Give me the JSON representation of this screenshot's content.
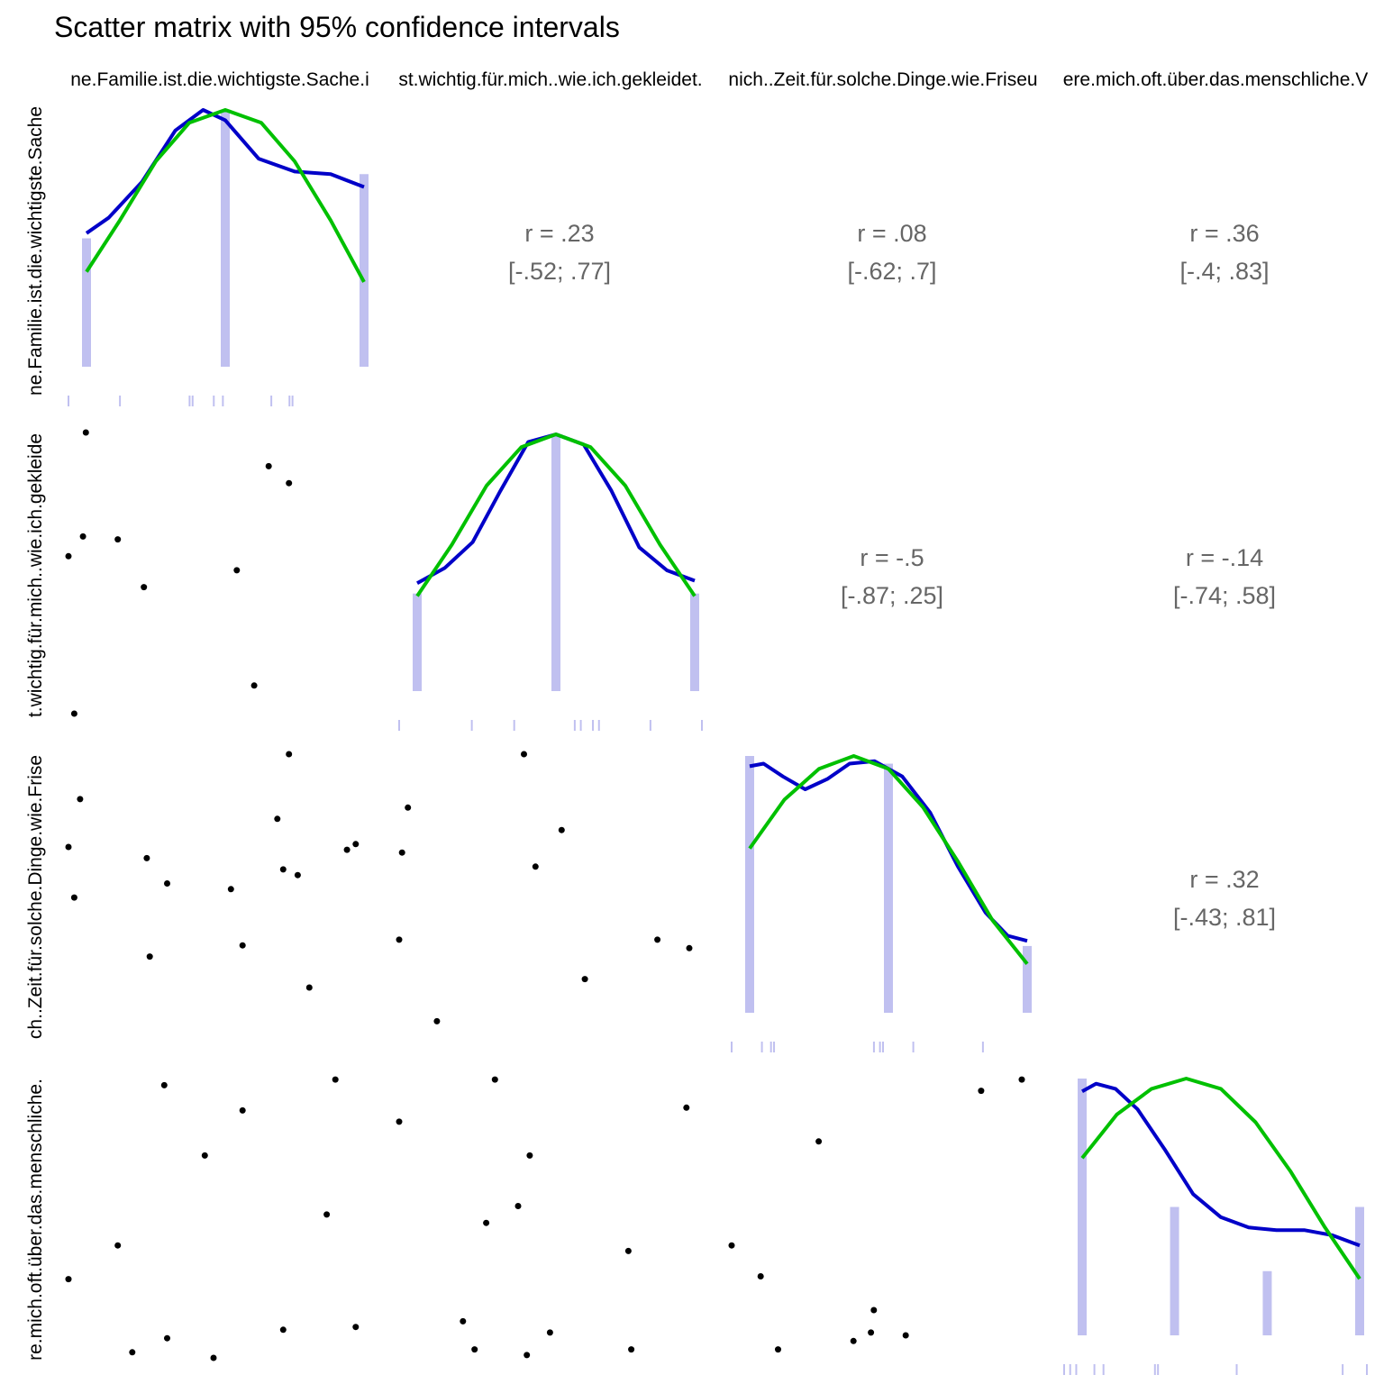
{
  "title": "Scatter matrix with 95% confidence intervals",
  "colors": {
    "density": "#0000c8",
    "normal": "#00c000",
    "histogram": "#c0c0f0",
    "rug": "#c0c0f0",
    "points": "#000000",
    "corr_text": "#666666"
  },
  "chart_data": {
    "type": "scatter",
    "variables": [
      "Meine.Familie.ist.die.wichtigste.Sache.in.meinem.Leben",
      "Es.ist.wichtig.für.mich..wie.ich.gekleidet.bin",
      "Ich.habe.nicht.viel.Zeit.für.solche.Dinge.wie.Friseurbesuche",
      "Ich.wundere.mich.oft.über.das.menschliche.Verhalten"
    ],
    "strip_labels": [
      "ne.Familie.ist.die.wichtigste.Sache.i",
      "st.wichtig.für.mich..wie.ich.gekleidet.",
      "nich..Zeit.für.solche.Dinge.wie.Friseu",
      "ere.mich.oft.über.das.menschliche.V"
    ],
    "row_labels": [
      "ne.Familie.ist.die.wichtigste.Sache",
      "t.wichtig.für.mich..wie.ich.gekleide",
      "ch..Zeit.für.solche.Dinge.wie.Frise",
      "re.mich.oft.über.das.menschliche."
    ],
    "correlations": [
      {
        "row": 0,
        "col": 1,
        "r": "r = .23",
        "ci": "[-.52; .77]"
      },
      {
        "row": 0,
        "col": 2,
        "r": "r = .08",
        "ci": "[-.62; .7]"
      },
      {
        "row": 0,
        "col": 3,
        "r": "r = .36",
        "ci": "[-.4; .83]"
      },
      {
        "row": 1,
        "col": 2,
        "r": "r = -.5",
        "ci": "[-.87; .25]"
      },
      {
        "row": 1,
        "col": 3,
        "r": "r = -.14",
        "ci": "[-.74; .58]"
      },
      {
        "row": 2,
        "col": 3,
        "r": "r = .32",
        "ci": "[-.43; .81]"
      }
    ],
    "diagonals": [
      {
        "hist_x": [
          0.0,
          0.5,
          1.0
        ],
        "hist_h": [
          0.5,
          1.0,
          0.75
        ],
        "density": [
          [
            0.0,
            0.52
          ],
          [
            0.08,
            0.58
          ],
          [
            0.2,
            0.72
          ],
          [
            0.32,
            0.92
          ],
          [
            0.42,
            1.0
          ],
          [
            0.5,
            0.96
          ],
          [
            0.62,
            0.81
          ],
          [
            0.75,
            0.76
          ],
          [
            0.88,
            0.75
          ],
          [
            1.0,
            0.7
          ]
        ],
        "normal": [
          [
            0.0,
            0.37
          ],
          [
            0.12,
            0.57
          ],
          [
            0.25,
            0.8
          ],
          [
            0.37,
            0.95
          ],
          [
            0.5,
            1.0
          ],
          [
            0.63,
            0.95
          ],
          [
            0.75,
            0.8
          ],
          [
            0.88,
            0.57
          ],
          [
            1.0,
            0.33
          ]
        ],
        "rug": [
          0.0,
          0.17,
          0.4,
          0.41,
          0.48,
          0.51,
          0.67,
          0.73,
          0.74
        ]
      },
      {
        "hist_x": [
          0.0,
          0.5,
          1.0
        ],
        "hist_h": [
          0.38,
          1.0,
          0.38
        ],
        "density": [
          [
            0.0,
            0.42
          ],
          [
            0.1,
            0.48
          ],
          [
            0.2,
            0.58
          ],
          [
            0.3,
            0.78
          ],
          [
            0.4,
            0.97
          ],
          [
            0.5,
            1.0
          ],
          [
            0.6,
            0.96
          ],
          [
            0.7,
            0.78
          ],
          [
            0.8,
            0.56
          ],
          [
            0.9,
            0.47
          ],
          [
            1.0,
            0.43
          ]
        ],
        "normal": [
          [
            0.0,
            0.37
          ],
          [
            0.125,
            0.57
          ],
          [
            0.25,
            0.8
          ],
          [
            0.375,
            0.95
          ],
          [
            0.5,
            1.0
          ],
          [
            0.625,
            0.95
          ],
          [
            0.75,
            0.8
          ],
          [
            0.875,
            0.57
          ],
          [
            1.0,
            0.37
          ]
        ],
        "rug": [
          0.0,
          0.24,
          0.38,
          0.58,
          0.6,
          0.64,
          0.66,
          0.83,
          1.0
        ]
      },
      {
        "hist_x": [
          0.0,
          0.5,
          1.0
        ],
        "hist_h": [
          1.0,
          0.97,
          0.26
        ],
        "density": [
          [
            0.0,
            0.96
          ],
          [
            0.05,
            0.97
          ],
          [
            0.12,
            0.92
          ],
          [
            0.2,
            0.87
          ],
          [
            0.28,
            0.91
          ],
          [
            0.36,
            0.97
          ],
          [
            0.45,
            0.98
          ],
          [
            0.55,
            0.92
          ],
          [
            0.65,
            0.78
          ],
          [
            0.75,
            0.57
          ],
          [
            0.85,
            0.39
          ],
          [
            0.93,
            0.3
          ],
          [
            1.0,
            0.28
          ]
        ],
        "normal": [
          [
            0.0,
            0.64
          ],
          [
            0.125,
            0.83
          ],
          [
            0.25,
            0.95
          ],
          [
            0.375,
            1.0
          ],
          [
            0.5,
            0.95
          ],
          [
            0.625,
            0.8
          ],
          [
            0.75,
            0.59
          ],
          [
            0.875,
            0.36
          ],
          [
            1.0,
            0.19
          ]
        ],
        "rug": [
          0.0,
          0.1,
          0.13,
          0.14,
          0.47,
          0.49,
          0.5,
          0.6,
          0.83
        ]
      },
      {
        "hist_x": [
          0.0,
          0.333,
          0.667,
          1.0
        ],
        "hist_h": [
          1.0,
          0.5,
          0.25,
          0.5
        ],
        "density": [
          [
            0.0,
            0.95
          ],
          [
            0.05,
            0.98
          ],
          [
            0.12,
            0.96
          ],
          [
            0.2,
            0.88
          ],
          [
            0.3,
            0.72
          ],
          [
            0.4,
            0.55
          ],
          [
            0.5,
            0.46
          ],
          [
            0.6,
            0.42
          ],
          [
            0.7,
            0.41
          ],
          [
            0.8,
            0.41
          ],
          [
            0.9,
            0.39
          ],
          [
            1.0,
            0.35
          ]
        ],
        "normal": [
          [
            0.0,
            0.69
          ],
          [
            0.125,
            0.86
          ],
          [
            0.25,
            0.96
          ],
          [
            0.375,
            1.0
          ],
          [
            0.5,
            0.96
          ],
          [
            0.625,
            0.83
          ],
          [
            0.75,
            0.64
          ],
          [
            0.875,
            0.42
          ],
          [
            1.0,
            0.22
          ]
        ],
        "rug": [
          0.0,
          0.02,
          0.04,
          0.1,
          0.13,
          0.3,
          0.31,
          0.57,
          0.92,
          1.0
        ]
      }
    ],
    "scatter_panels": [
      {
        "row": 1,
        "col": 0,
        "points": [
          [
            0.06,
            1.0
          ],
          [
            0.76,
            0.82
          ],
          [
            0.05,
            0.63
          ],
          [
            0.17,
            0.62
          ],
          [
            0.0,
            0.56
          ],
          [
            0.58,
            0.51
          ],
          [
            0.26,
            0.45
          ],
          [
            0.69,
            0.88
          ],
          [
            0.02,
            0.0
          ],
          [
            0.64,
            0.1
          ]
        ]
      },
      {
        "row": 2,
        "col": 0,
        "points": [
          [
            0.76,
            1.0
          ],
          [
            0.72,
            0.77
          ],
          [
            0.0,
            0.67
          ],
          [
            0.99,
            0.68
          ],
          [
            0.96,
            0.66
          ],
          [
            0.74,
            0.59
          ],
          [
            0.56,
            0.52
          ],
          [
            0.83,
            0.17
          ],
          [
            0.04,
            0.84
          ],
          [
            0.02,
            0.49
          ],
          [
            0.27,
            0.63
          ],
          [
            0.34,
            0.54
          ],
          [
            0.79,
            0.57
          ],
          [
            0.6,
            0.32
          ],
          [
            0.28,
            0.28
          ]
        ]
      },
      {
        "row": 2,
        "col": 1,
        "points": [
          [
            0.43,
            1.0
          ],
          [
            0.03,
            0.81
          ],
          [
            0.56,
            0.73
          ],
          [
            0.47,
            0.6
          ],
          [
            0.01,
            0.65
          ],
          [
            0.0,
            0.34
          ],
          [
            0.64,
            0.2
          ],
          [
            0.89,
            0.34
          ],
          [
            1.0,
            0.31
          ],
          [
            0.13,
            0.05
          ]
        ]
      },
      {
        "row": 3,
        "col": 0,
        "points": [
          [
            0.0,
            0.28
          ],
          [
            0.17,
            0.4
          ],
          [
            0.6,
            0.88
          ],
          [
            0.5,
            0.0
          ],
          [
            0.22,
            0.02
          ],
          [
            0.34,
            0.07
          ],
          [
            0.89,
            0.51
          ],
          [
            0.99,
            0.11
          ],
          [
            0.74,
            0.1
          ],
          [
            0.47,
            0.72
          ],
          [
            0.33,
            0.97
          ],
          [
            0.92,
            0.99
          ]
        ]
      },
      {
        "row": 3,
        "col": 1,
        "points": [
          [
            0.33,
            0.99
          ],
          [
            0.45,
            0.72
          ],
          [
            0.0,
            0.84
          ],
          [
            0.22,
            0.13
          ],
          [
            0.41,
            0.54
          ],
          [
            0.3,
            0.48
          ],
          [
            0.8,
            0.03
          ],
          [
            0.44,
            0.01
          ],
          [
            0.26,
            0.03
          ],
          [
            0.52,
            0.09
          ],
          [
            0.79,
            0.38
          ],
          [
            0.99,
            0.89
          ]
        ]
      },
      {
        "row": 3,
        "col": 2,
        "points": [
          [
            0.0,
            0.4
          ],
          [
            0.1,
            0.29
          ],
          [
            0.16,
            0.03
          ],
          [
            0.49,
            0.17
          ],
          [
            0.86,
            0.95
          ],
          [
            0.3,
            0.77
          ],
          [
            0.6,
            0.08
          ],
          [
            1.0,
            0.99
          ],
          [
            0.48,
            0.09
          ],
          [
            0.42,
            0.06
          ]
        ]
      }
    ]
  }
}
